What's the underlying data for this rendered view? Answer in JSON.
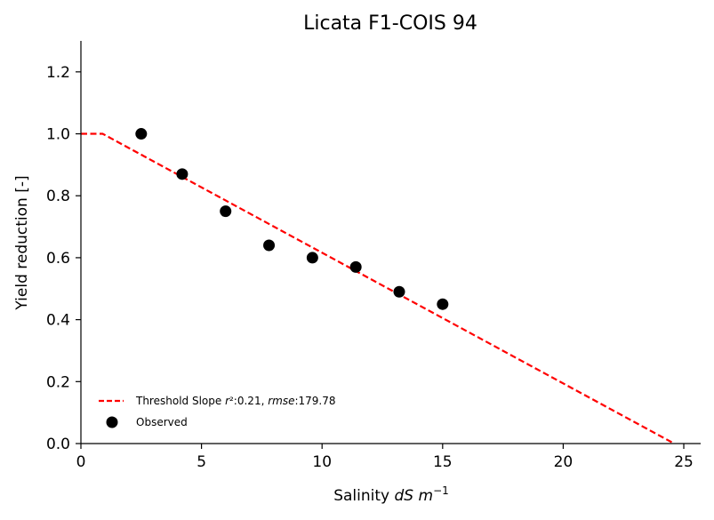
{
  "chart_data": {
    "type": "scatter",
    "title": "Licata F1-COIS 94",
    "xlabel": {
      "prefix": "Salinity ",
      "math": "dS m",
      "exp": "−1"
    },
    "ylabel": "Yield reduction [-]",
    "xlim": [
      0,
      25.7
    ],
    "ylim": [
      0,
      1.3
    ],
    "x_ticks": [
      0,
      5,
      10,
      15,
      20,
      25
    ],
    "y_ticks": [
      0.0,
      0.2,
      0.4,
      0.6,
      0.8,
      1.0,
      1.2
    ],
    "y_tick_labels": [
      "0.0",
      "0.2",
      "0.4",
      "0.6",
      "0.8",
      "1.0",
      "1.2"
    ],
    "spines": "left-bottom",
    "grid": false,
    "legend_position": "lower-left",
    "series": [
      {
        "name": "Threshold Slope r²:0.21, rmse:179.78",
        "label_parts": {
          "a": "Threshold Slope ",
          "b": "r",
          "c": "²:0.21, ",
          "d": "rmse",
          "e": ":179.78"
        },
        "kind": "dashed-line",
        "color": "#ff0000",
        "x": [
          0,
          0.9,
          24.6
        ],
        "y": [
          1.0,
          1.0,
          0.0
        ]
      },
      {
        "name": "Observed",
        "kind": "points",
        "color": "#000000",
        "x": [
          2.5,
          4.2,
          6.0,
          7.8,
          9.6,
          11.4,
          13.2,
          15.0
        ],
        "y": [
          1.0,
          0.87,
          0.75,
          0.64,
          0.6,
          0.57,
          0.49,
          0.45
        ]
      }
    ]
  }
}
